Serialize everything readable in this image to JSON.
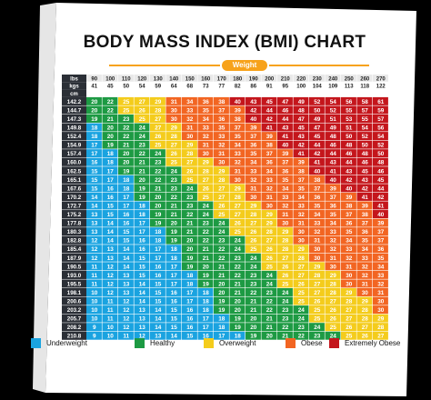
{
  "title": "BODY MASS INDEX (BMI) CHART",
  "weight_label": "Weight",
  "header_lbs_label": "lbs",
  "header_kgs_label": "kgs",
  "header_cm_label": "cm",
  "lbs": [
    "90",
    "100",
    "110",
    "120",
    "130",
    "140",
    "150",
    "160",
    "170",
    "180",
    "190",
    "200",
    "210",
    "220",
    "230",
    "240",
    "250",
    "260",
    "270"
  ],
  "kgs": [
    "41",
    "45",
    "50",
    "54",
    "59",
    "64",
    "68",
    "73",
    "77",
    "82",
    "86",
    "91",
    "95",
    "100",
    "104",
    "109",
    "113",
    "118",
    "122"
  ],
  "legend": [
    {
      "label": "Underweight",
      "color": "#1aa3e0"
    },
    {
      "label": "Healthy",
      "color": "#1d9a43"
    },
    {
      "label": "Overweight",
      "color": "#f4cc1c"
    },
    {
      "label": "Obese",
      "color": "#f26522"
    },
    {
      "label": "Extremely Obese",
      "color": "#c4161c"
    }
  ],
  "chart_data": {
    "type": "heatmap",
    "title": "BODY MASS INDEX (BMI) CHART",
    "xlabel": "Weight",
    "x_lbs": [
      90,
      100,
      110,
      120,
      130,
      140,
      150,
      160,
      170,
      180,
      190,
      200,
      210,
      220,
      230,
      240,
      250,
      260,
      270
    ],
    "x_kgs": [
      41,
      45,
      50,
      54,
      59,
      64,
      68,
      73,
      77,
      82,
      86,
      91,
      95,
      100,
      104,
      109,
      113,
      118,
      122
    ],
    "y_cm": [
      "142.2",
      "144.7",
      "147.3",
      "149.8",
      "152.4",
      "154.9",
      "157.4",
      "160.0",
      "162.5",
      "165.1",
      "167.6",
      "170.2",
      "172.7",
      "175.2",
      "177.8",
      "180.3",
      "182.8",
      "185.4",
      "187.9",
      "190.5",
      "193.0",
      "195.5",
      "198.1",
      "200.6",
      "203.2",
      "205.7",
      "208.2",
      "210.8"
    ],
    "categories": [
      {
        "name": "Underweight",
        "max": 18
      },
      {
        "name": "Healthy",
        "min": 19,
        "max": 24
      },
      {
        "name": "Overweight",
        "min": 25,
        "max": 29
      },
      {
        "name": "Obese",
        "min": 30,
        "max": 39
      },
      {
        "name": "Extremely Obese",
        "min": 40
      }
    ],
    "values": [
      [
        20,
        22,
        25,
        27,
        29,
        31,
        34,
        36,
        38,
        40,
        43,
        45,
        47,
        49,
        52,
        54,
        56,
        58,
        61
      ],
      [
        20,
        22,
        25,
        26,
        28,
        30,
        33,
        35,
        37,
        39,
        42,
        44,
        46,
        48,
        50,
        52,
        55,
        57,
        59
      ],
      [
        19,
        21,
        23,
        25,
        27,
        30,
        32,
        34,
        36,
        38,
        40,
        42,
        44,
        47,
        49,
        51,
        53,
        55,
        57
      ],
      [
        18,
        20,
        22,
        24,
        27,
        29,
        31,
        33,
        35,
        37,
        39,
        41,
        43,
        45,
        47,
        49,
        51,
        54,
        56
      ],
      [
        18,
        20,
        22,
        24,
        26,
        28,
        30,
        32,
        33,
        35,
        37,
        39,
        41,
        43,
        45,
        48,
        50,
        52,
        54
      ],
      [
        17,
        19,
        21,
        23,
        25,
        27,
        29,
        31,
        32,
        34,
        36,
        38,
        40,
        42,
        44,
        46,
        48,
        50,
        52
      ],
      [
        17,
        18,
        20,
        22,
        24,
        26,
        28,
        30,
        31,
        33,
        35,
        37,
        39,
        41,
        42,
        44,
        46,
        48,
        50
      ],
      [
        16,
        18,
        20,
        21,
        23,
        25,
        27,
        29,
        30,
        32,
        34,
        36,
        37,
        39,
        41,
        43,
        44,
        46,
        48
      ],
      [
        15,
        17,
        19,
        21,
        22,
        24,
        26,
        28,
        29,
        31,
        33,
        34,
        36,
        38,
        40,
        41,
        43,
        45,
        46
      ],
      [
        15,
        17,
        18,
        20,
        22,
        23,
        25,
        27,
        28,
        30,
        32,
        33,
        35,
        37,
        38,
        40,
        42,
        43,
        45
      ],
      [
        15,
        16,
        18,
        19,
        21,
        23,
        24,
        26,
        27,
        29,
        31,
        32,
        34,
        35,
        37,
        39,
        40,
        42,
        44
      ],
      [
        14,
        16,
        17,
        19,
        20,
        22,
        23,
        25,
        27,
        28,
        30,
        31,
        33,
        34,
        36,
        37,
        39,
        41,
        42
      ],
      [
        14,
        15,
        17,
        18,
        20,
        21,
        23,
        24,
        26,
        27,
        29,
        30,
        32,
        33,
        35,
        36,
        38,
        39,
        41
      ],
      [
        13,
        15,
        16,
        18,
        19,
        21,
        22,
        24,
        25,
        27,
        28,
        29,
        31,
        32,
        34,
        35,
        37,
        38,
        40
      ],
      [
        13,
        14,
        16,
        17,
        19,
        20,
        21,
        23,
        24,
        26,
        27,
        29,
        30,
        31,
        33,
        34,
        36,
        37,
        39
      ],
      [
        13,
        14,
        15,
        17,
        18,
        19,
        21,
        22,
        24,
        25,
        26,
        28,
        29,
        30,
        32,
        33,
        35,
        36,
        37
      ],
      [
        12,
        14,
        15,
        16,
        18,
        19,
        20,
        22,
        23,
        24,
        26,
        27,
        28,
        30,
        31,
        32,
        34,
        35,
        37
      ],
      [
        12,
        13,
        14,
        16,
        17,
        18,
        20,
        21,
        22,
        24,
        25,
        26,
        28,
        29,
        30,
        32,
        33,
        34,
        36
      ],
      [
        12,
        13,
        14,
        15,
        17,
        18,
        19,
        21,
        22,
        23,
        24,
        26,
        27,
        28,
        30,
        31,
        32,
        33,
        35
      ],
      [
        11,
        12,
        14,
        15,
        16,
        17,
        19,
        20,
        21,
        22,
        24,
        25,
        26,
        27,
        29,
        30,
        31,
        32,
        34
      ],
      [
        11,
        12,
        13,
        15,
        16,
        17,
        18,
        19,
        21,
        22,
        23,
        24,
        26,
        27,
        28,
        29,
        30,
        32,
        33
      ],
      [
        11,
        12,
        13,
        14,
        15,
        17,
        18,
        19,
        20,
        21,
        23,
        24,
        25,
        26,
        27,
        28,
        30,
        31,
        32
      ],
      [
        10,
        12,
        13,
        14,
        15,
        16,
        17,
        18,
        20,
        21,
        22,
        23,
        24,
        25,
        27,
        28,
        29,
        30,
        31
      ],
      [
        10,
        11,
        12,
        14,
        15,
        16,
        17,
        18,
        19,
        20,
        21,
        22,
        24,
        25,
        26,
        27,
        28,
        29,
        30
      ],
      [
        10,
        11,
        12,
        13,
        14,
        15,
        16,
        18,
        19,
        20,
        21,
        22,
        23,
        24,
        25,
        26,
        27,
        28,
        30
      ],
      [
        10,
        11,
        12,
        13,
        14,
        15,
        16,
        17,
        18,
        19,
        20,
        21,
        23,
        24,
        25,
        26,
        27,
        28,
        29
      ],
      [
        9,
        10,
        12,
        13,
        14,
        15,
        16,
        17,
        18,
        19,
        20,
        21,
        22,
        23,
        24,
        25,
        26,
        27,
        28
      ],
      [
        9,
        10,
        11,
        12,
        13,
        14,
        15,
        16,
        17,
        18,
        19,
        20,
        21,
        22,
        23,
        24,
        25,
        26,
        27
      ]
    ]
  }
}
